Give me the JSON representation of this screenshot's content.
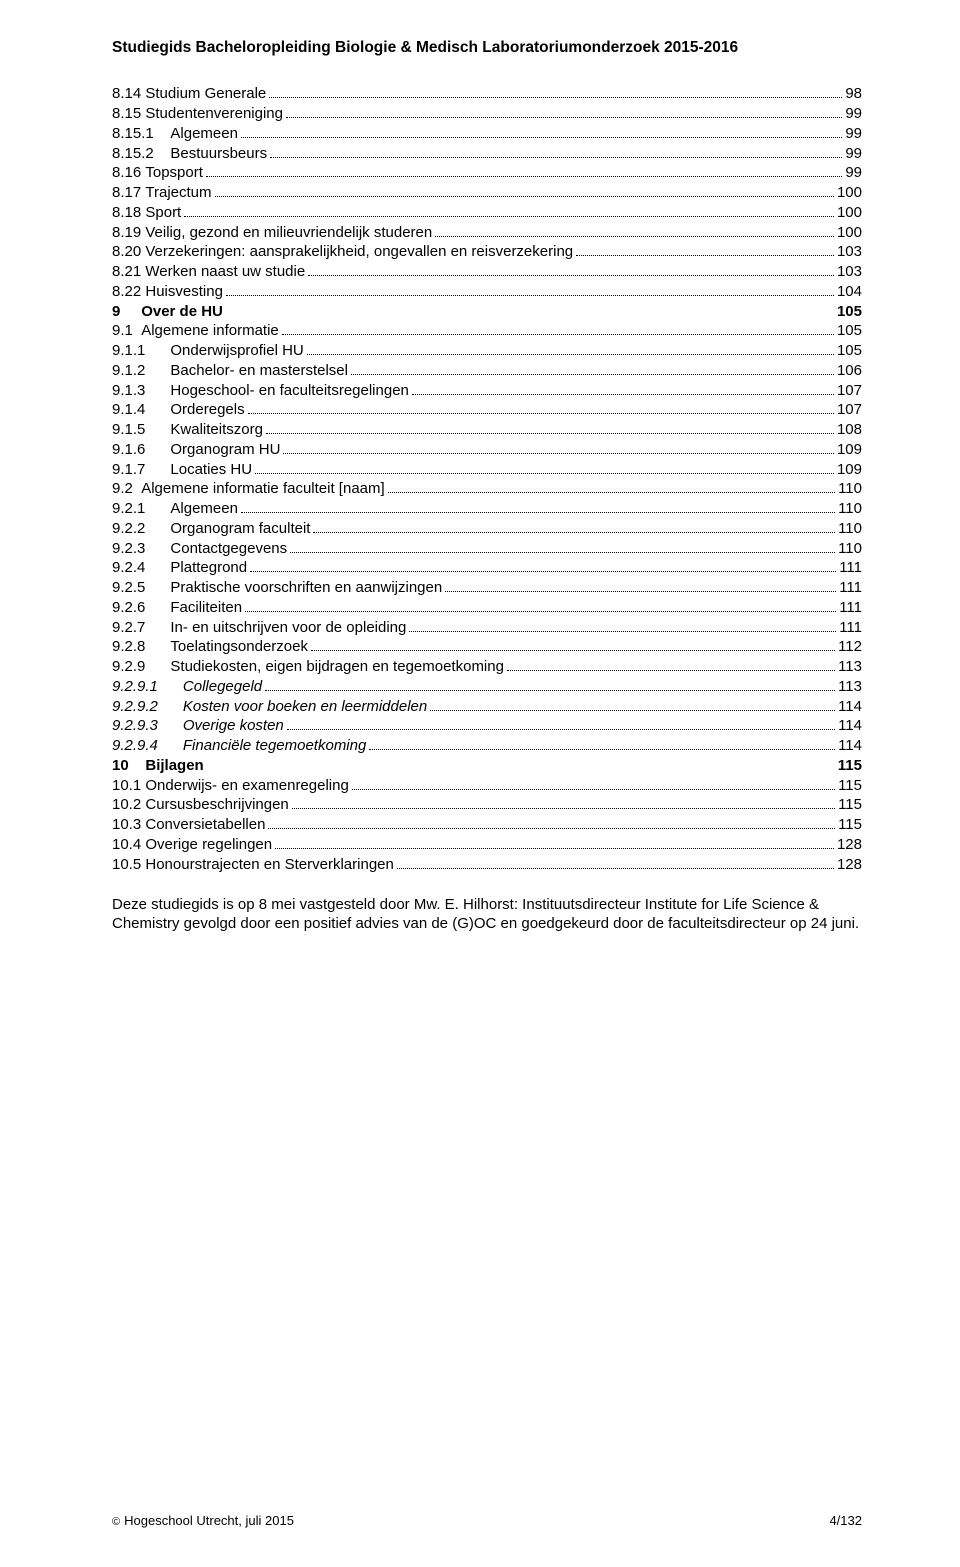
{
  "header": "Studiegids Bacheloropleiding Biologie & Medisch Laboratoriumonderzoek 2015-2016",
  "toc": [
    {
      "num": "8.14",
      "sep": " ",
      "label": "Studium Generale",
      "page": "98",
      "dots": true
    },
    {
      "num": "8.15",
      "sep": " ",
      "label": "Studentenvereniging",
      "page": "99",
      "dots": true
    },
    {
      "num": "8.15.1",
      "sep": "    ",
      "label": "Algemeen",
      "page": "99",
      "dots": true
    },
    {
      "num": "8.15.2",
      "sep": "    ",
      "label": "Bestuursbeurs",
      "page": "99",
      "dots": true
    },
    {
      "num": "8.16",
      "sep": " ",
      "label": "Topsport",
      "page": "99",
      "dots": true
    },
    {
      "num": "8.17",
      "sep": " ",
      "label": "Trajectum",
      "page": "100",
      "dots": true
    },
    {
      "num": "8.18",
      "sep": " ",
      "label": "Sport",
      "page": "100",
      "dots": true
    },
    {
      "num": "8.19",
      "sep": " ",
      "label": "Veilig, gezond en milieuvriendelijk studeren",
      "page": "100",
      "dots": true
    },
    {
      "num": "8.20",
      "sep": " ",
      "label": "Verzekeringen: aansprakelijkheid, ongevallen en reisverzekering",
      "page": "103",
      "dots": true
    },
    {
      "num": "8.21",
      "sep": " ",
      "label": "Werken naast uw studie",
      "page": "103",
      "dots": true
    },
    {
      "num": "8.22",
      "sep": " ",
      "label": "Huisvesting",
      "page": "104",
      "dots": true
    },
    {
      "num": "9",
      "sep": "     ",
      "label": "Over de HU",
      "page": "105",
      "dots": false,
      "bold": true
    },
    {
      "num": "9.1",
      "sep": "  ",
      "label": "Algemene informatie",
      "page": "105",
      "dots": true
    },
    {
      "num": "9.1.1",
      "sep": "      ",
      "label": "Onderwijsprofiel HU",
      "page": "105",
      "dots": true
    },
    {
      "num": "9.1.2",
      "sep": "      ",
      "label": "Bachelor- en masterstelsel",
      "page": "106",
      "dots": true
    },
    {
      "num": "9.1.3",
      "sep": "      ",
      "label": "Hogeschool- en faculteitsregelingen",
      "page": "107",
      "dots": true
    },
    {
      "num": "9.1.4",
      "sep": "      ",
      "label": "Orderegels",
      "page": "107",
      "dots": true
    },
    {
      "num": "9.1.5",
      "sep": "      ",
      "label": "Kwaliteitszorg",
      "page": "108",
      "dots": true
    },
    {
      "num": "9.1.6",
      "sep": "      ",
      "label": "Organogram HU",
      "page": "109",
      "dots": true
    },
    {
      "num": "9.1.7",
      "sep": "      ",
      "label": "Locaties HU",
      "page": "109",
      "dots": true
    },
    {
      "num": "9.2",
      "sep": "  ",
      "label": "Algemene informatie faculteit [naam]",
      "page": "110",
      "dots": true
    },
    {
      "num": "9.2.1",
      "sep": "      ",
      "label": "Algemeen",
      "page": "110",
      "dots": true
    },
    {
      "num": "9.2.2",
      "sep": "      ",
      "label": "Organogram faculteit",
      "page": "110",
      "dots": true
    },
    {
      "num": "9.2.3",
      "sep": "      ",
      "label": "Contactgegevens",
      "page": "110",
      "dots": true
    },
    {
      "num": "9.2.4",
      "sep": "      ",
      "label": "Plattegrond",
      "page": "111",
      "dots": true
    },
    {
      "num": "9.2.5",
      "sep": "      ",
      "label": "Praktische voorschriften en aanwijzingen",
      "page": "111",
      "dots": true
    },
    {
      "num": "9.2.6",
      "sep": "      ",
      "label": "Faciliteiten",
      "page": "111",
      "dots": true
    },
    {
      "num": "9.2.7",
      "sep": "      ",
      "label": "In- en uitschrijven voor de opleiding",
      "page": "111",
      "dots": true
    },
    {
      "num": "9.2.8",
      "sep": "      ",
      "label": "Toelatingsonderzoek",
      "page": "112",
      "dots": true
    },
    {
      "num": "9.2.9",
      "sep": "      ",
      "label": "Studiekosten, eigen bijdragen en tegemoetkoming",
      "page": "113",
      "dots": true
    },
    {
      "num": "9.2.9.1",
      "sep": "      ",
      "label": "Collegegeld",
      "page": "113",
      "dots": true,
      "italic": true
    },
    {
      "num": "9.2.9.2",
      "sep": "      ",
      "label": "Kosten voor boeken en leermiddelen",
      "page": "114",
      "dots": true,
      "italic": true
    },
    {
      "num": "9.2.9.3",
      "sep": "      ",
      "label": "Overige kosten",
      "page": "114",
      "dots": true,
      "italic": true
    },
    {
      "num": "9.2.9.4",
      "sep": "      ",
      "label": "Financiële tegemoetkoming",
      "page": "114",
      "dots": true,
      "italic": true
    },
    {
      "num": "10",
      "sep": "    ",
      "label": "Bijlagen",
      "page": "115",
      "dots": false,
      "bold": true
    },
    {
      "num": "10.1",
      "sep": " ",
      "label": "Onderwijs- en examenregeling",
      "page": "115",
      "dots": true
    },
    {
      "num": "10.2",
      "sep": " ",
      "label": "Cursusbeschrijvingen",
      "page": "115",
      "dots": true
    },
    {
      "num": "10.3",
      "sep": " ",
      "label": "Conversietabellen",
      "page": "115",
      "dots": true
    },
    {
      "num": "10.4",
      "sep": " ",
      "label": "Overige regelingen",
      "page": "128",
      "dots": true
    },
    {
      "num": "10.5",
      "sep": " ",
      "label": "Honourstrajecten en Sterverklaringen",
      "page": "128",
      "dots": true
    }
  ],
  "paragraph": "Deze studiegids is op 8 mei vastgesteld door Mw. E. Hilhorst: Instituutsdirecteur Institute for Life Science & Chemistry gevolgd door een positief advies van de (G)OC en goedgekeurd door de faculteitsdirecteur op 24 juni.",
  "footer": {
    "copyright": "Hogeschool Utrecht, juli 2015",
    "pagenum": "4/132"
  }
}
